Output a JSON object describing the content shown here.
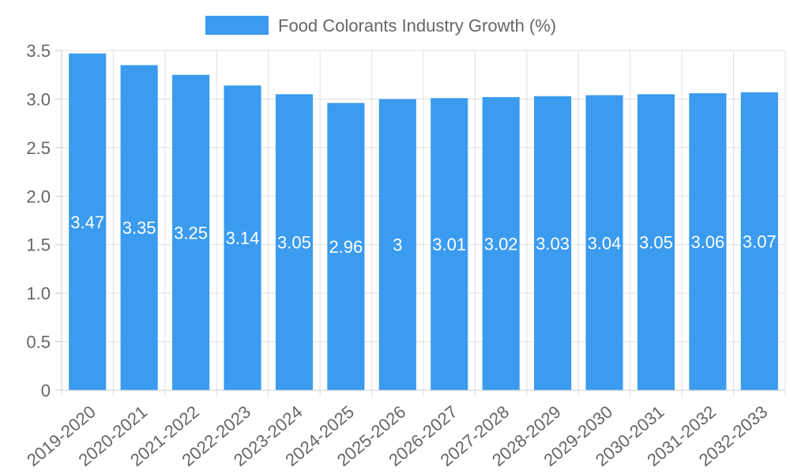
{
  "chart_data": {
    "type": "bar",
    "title": "",
    "xlabel": "",
    "ylabel": "",
    "ylim": [
      0,
      3.5
    ],
    "yticks": [
      "0",
      "0.5",
      "1.0",
      "1.5",
      "2.0",
      "2.5",
      "3.0",
      "3.5"
    ],
    "grid": true,
    "legend_position": "top-center",
    "series": [
      {
        "name": "Food Colorants Industry Growth (%)",
        "color": "#3a9bef",
        "values": [
          3.47,
          3.35,
          3.25,
          3.14,
          3.05,
          2.96,
          3,
          3.01,
          3.02,
          3.03,
          3.04,
          3.05,
          3.06,
          3.07
        ],
        "labels": [
          "3.47",
          "3.35",
          "3.25",
          "3.14",
          "3.05",
          "2.96",
          "3",
          "3.01",
          "3.02",
          "3.03",
          "3.04",
          "3.05",
          "3.06",
          "3.07"
        ]
      }
    ],
    "categories": [
      "2019-2020",
      "2020-2021",
      "2021-2022",
      "2022-2023",
      "2023-2024",
      "2024-2025",
      "2025-2026",
      "2026-2027",
      "2027-2028",
      "2028-2029",
      "2029-2030",
      "2030-2031",
      "2031-2032",
      "2032-2033"
    ]
  }
}
